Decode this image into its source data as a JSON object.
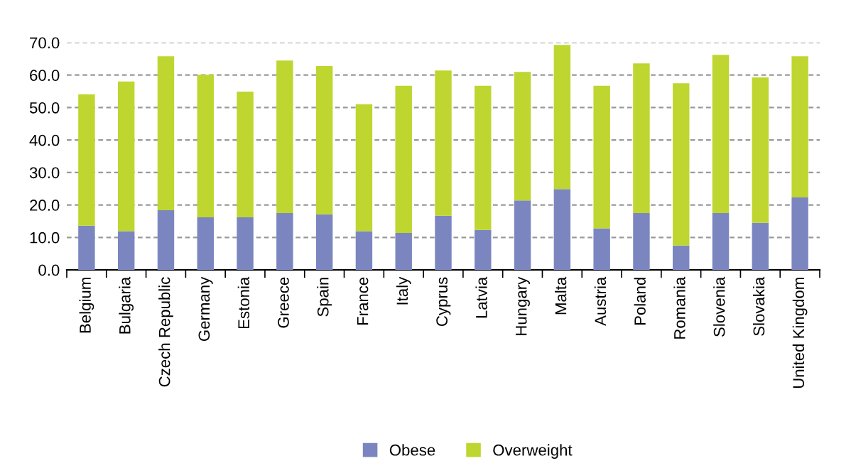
{
  "chart_data": {
    "type": "bar",
    "stacked": true,
    "categories": [
      "Belgium",
      "Bulgaria",
      "Czech Republic",
      "Germany",
      "Estonia",
      "Greece",
      "Spain",
      "France",
      "Italy",
      "Cyprus",
      "Latvia",
      "Hungary",
      "Malta",
      "Austria",
      "Poland",
      "Romania",
      "Slovenia",
      "Slovakia",
      "United Kingdom"
    ],
    "series": [
      {
        "name": "Obese",
        "color": "#7b86c0",
        "values": [
          13.6,
          11.9,
          18.4,
          16.2,
          16.2,
          17.5,
          17.1,
          11.9,
          11.4,
          16.7,
          12.3,
          21.4,
          24.9,
          12.8,
          17.5,
          7.5,
          17.5,
          14.5,
          22.3
        ]
      },
      {
        "name": "Overweight",
        "color": "#bed62f",
        "values": [
          40.5,
          46.1,
          47.4,
          43.9,
          38.7,
          47.0,
          45.7,
          39.1,
          45.3,
          44.7,
          44.4,
          39.6,
          44.4,
          43.9,
          46.1,
          50.0,
          48.7,
          44.8,
          43.5
        ]
      }
    ],
    "ylim": [
      0,
      70
    ],
    "yticks": [
      {
        "value": 0,
        "label": "0.0"
      },
      {
        "value": 10,
        "label": "10.0"
      },
      {
        "value": 20,
        "label": "20.0"
      },
      {
        "value": 30,
        "label": "30.0"
      },
      {
        "value": 40,
        "label": "40.0"
      },
      {
        "value": 50,
        "label": "50.0"
      },
      {
        "value": 60,
        "label": "60.0"
      },
      {
        "value": 70,
        "label": "70.0"
      }
    ],
    "grid": "y",
    "legend": "bottom"
  }
}
